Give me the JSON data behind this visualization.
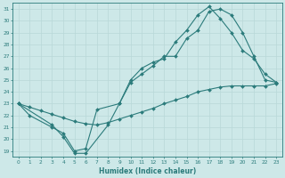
{
  "xlabel": "Humidex (Indice chaleur)",
  "ylabel": "",
  "xlim": [
    -0.5,
    23.5
  ],
  "ylim": [
    18.5,
    31.5
  ],
  "xticks": [
    0,
    1,
    2,
    3,
    4,
    5,
    6,
    7,
    8,
    9,
    10,
    11,
    12,
    13,
    14,
    15,
    16,
    17,
    18,
    19,
    20,
    21,
    22,
    23
  ],
  "yticks": [
    19,
    20,
    21,
    22,
    23,
    24,
    25,
    26,
    27,
    28,
    29,
    30,
    31
  ],
  "bg_color": "#cde8e8",
  "line_color": "#2b7b7b",
  "grid_color": "#b8d8d8",
  "line1_x": [
    0,
    1,
    3,
    4,
    5,
    6,
    7,
    9,
    10,
    11,
    12,
    13,
    14,
    15,
    16,
    17,
    18,
    19,
    20,
    21,
    22,
    23
  ],
  "line1_y": [
    23,
    22,
    21,
    20.5,
    19,
    19.2,
    22.5,
    23,
    24.8,
    25.5,
    26.2,
    27.0,
    27.0,
    28.5,
    29.2,
    30.8,
    31.0,
    30.5,
    29.0,
    27.0,
    25.0,
    24.8
  ],
  "line2_x": [
    0,
    3,
    4,
    5,
    6,
    8,
    9,
    10,
    11,
    12,
    13,
    14,
    15,
    16,
    17,
    18,
    19,
    20,
    21,
    22,
    23
  ],
  "line2_y": [
    23,
    21.2,
    20.2,
    18.8,
    18.8,
    21.2,
    23,
    25.0,
    26.0,
    26.5,
    26.8,
    28.2,
    29.2,
    30.5,
    31.2,
    30.2,
    29.0,
    27.5,
    26.8,
    25.5,
    24.8
  ],
  "line3_x": [
    0,
    1,
    2,
    3,
    4,
    5,
    6,
    7,
    8,
    9,
    10,
    11,
    12,
    13,
    14,
    15,
    16,
    17,
    18,
    19,
    20,
    21,
    22,
    23
  ],
  "line3_y": [
    23.0,
    22.7,
    22.4,
    22.1,
    21.8,
    21.5,
    21.3,
    21.2,
    21.4,
    21.7,
    22.0,
    22.3,
    22.6,
    23.0,
    23.3,
    23.6,
    24.0,
    24.2,
    24.4,
    24.5,
    24.5,
    24.5,
    24.5,
    24.7
  ]
}
